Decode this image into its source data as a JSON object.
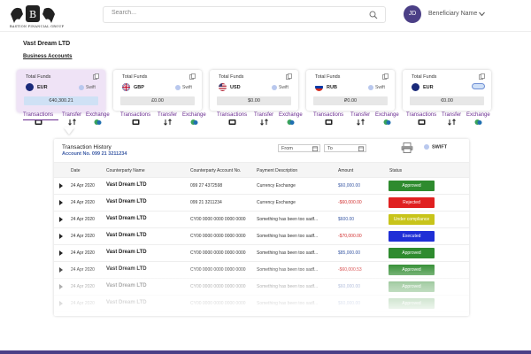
{
  "brand": {
    "logo_text": "BASTION FINANCIAL GROUP"
  },
  "search": {
    "placeholder": "Search..."
  },
  "user": {
    "initials": "JD",
    "name": "Beneficiary Name"
  },
  "company": "Vast Dream LTD",
  "section_link": "Business Accounts",
  "cards": [
    {
      "title": "Total Funds",
      "currency": "EUR",
      "method": "Swift",
      "amount": "€40,300.21",
      "flag": "eu"
    },
    {
      "title": "Total Funds",
      "currency": "GBP",
      "method": "Swift",
      "amount": "£0.00",
      "flag": "gb"
    },
    {
      "title": "Total Funds",
      "currency": "USD",
      "method": "Swift",
      "amount": "$0.00",
      "flag": "us"
    },
    {
      "title": "Total Funds",
      "currency": "RUB",
      "method": "Swift",
      "amount": "₽0.00",
      "flag": "ru"
    },
    {
      "title": "Total Funds",
      "currency": "EUR",
      "method": "",
      "amount": "€0.00",
      "flag": "eu"
    }
  ],
  "actions": {
    "transactions": "Transactions",
    "transfer": "Transfer",
    "exchange": "Exchange"
  },
  "history": {
    "title": "Transaction History",
    "account": "Account No. 099 21 3211234",
    "from_label": "From",
    "to_label": "To",
    "swift_label": "SWIFT",
    "columns": [
      "Date",
      "Counterparty Name",
      "Counterparty Account No.",
      "Payment Description",
      "Amount",
      "Status"
    ],
    "rows": [
      {
        "date": "24 Apr 2020",
        "name": "Vast Dream LTD",
        "account": "099 27 4372598",
        "desc": "Currency Exchange",
        "amount": "$60,000.00",
        "sign": "pos",
        "status": "Approved",
        "status_color": "#2e8b2e"
      },
      {
        "date": "24 Apr 2020",
        "name": "Vast Dream LTD",
        "account": "099 21 3211234",
        "desc": "Currency Exchange",
        "amount": "-$60,000.00",
        "sign": "neg",
        "status": "Rejected",
        "status_color": "#e02020"
      },
      {
        "date": "24 Apr 2020",
        "name": "Vast Dream LTD",
        "account": "CY00 0000 0000 0000 0000",
        "desc": "Something has been too sadf...",
        "amount": "$600.00",
        "sign": "pos",
        "status": "Under compliance",
        "status_color": "#c8c41a"
      },
      {
        "date": "24 Apr 2020",
        "name": "Vast Dream LTD",
        "account": "CY00 0000 0000 0000 0000",
        "desc": "Something has been too sadf...",
        "amount": "-$70,000.00",
        "sign": "neg",
        "status": "Executed",
        "status_color": "#1f2fd6"
      },
      {
        "date": "24 Apr 2020",
        "name": "Vast Dream LTD",
        "account": "CY00 0000 0000 0000 0000",
        "desc": "Something has been too sadf...",
        "amount": "$85,000.00",
        "sign": "pos",
        "status": "Approved",
        "status_color": "#2e8b2e"
      },
      {
        "date": "24 Apr 2020",
        "name": "Vast Dream LTD",
        "account": "CY00 0000 0000 0000 0000",
        "desc": "Something has been too sadf...",
        "amount": "-$60,000.53",
        "sign": "neg",
        "status": "Approved",
        "status_color": "#2e8b2e"
      },
      {
        "date": "24 Apr 2020",
        "name": "Vast Dream LTD",
        "account": "CY00 0000 0000 0000 0000",
        "desc": "Something has been too sadf...",
        "amount": "$60,000.00",
        "sign": "pos",
        "status": "Approved",
        "status_color": "#2e8b2e"
      },
      {
        "date": "24 Apr 2020",
        "name": "Vast Dream LTD",
        "account": "CY00 0000 0000 0000 0000",
        "desc": "Something has been too sadf...",
        "amount": "$60,000.00",
        "sign": "pos",
        "status": "Approved",
        "status_color": "#2e8b2e"
      }
    ]
  },
  "colors": {
    "accent": "#6a2b90",
    "brand": "#4b3f86"
  }
}
